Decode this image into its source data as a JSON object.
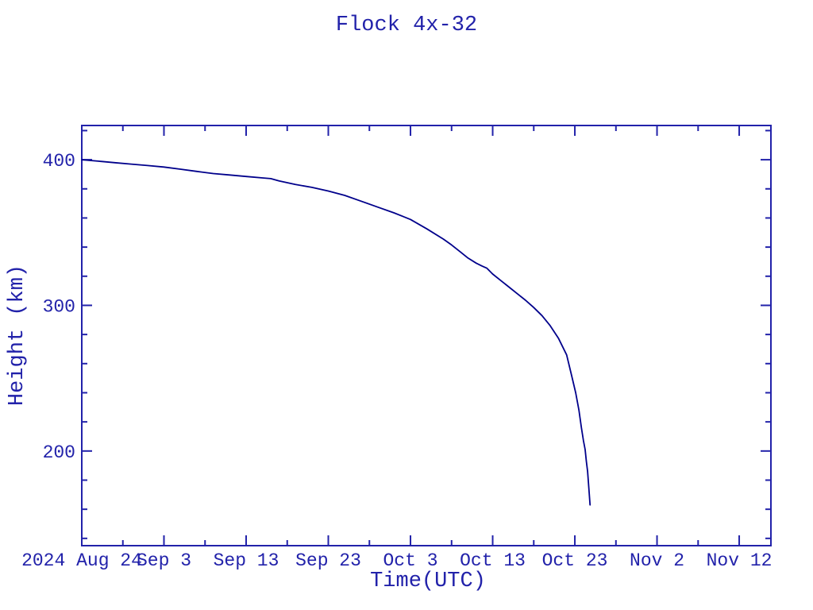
{
  "page": {
    "background": "#ffffff"
  },
  "chart": {
    "title": "Flock 4x-32",
    "xlabel": "Time(UTC)",
    "ylabel": "Height (km)"
  },
  "chart_data": {
    "type": "line",
    "title": "Flock 4x-32",
    "xlabel": "Time(UTC)",
    "ylabel": "Height (km)",
    "grid": false,
    "legend_position": "none",
    "x_unit": "days after 2024 Aug 24 00:00 UTC",
    "xlim_days": [
      0,
      83.86
    ],
    "ylim_km": [
      135,
      423.5
    ],
    "x_major_ticks": [
      {
        "day": 0,
        "label": "2024 Aug 24"
      },
      {
        "day": 10,
        "label": "Sep  3"
      },
      {
        "day": 20,
        "label": "Sep 13"
      },
      {
        "day": 30,
        "label": "Sep 23"
      },
      {
        "day": 40,
        "label": "Oct  3"
      },
      {
        "day": 50,
        "label": "Oct 13"
      },
      {
        "day": 60,
        "label": "Oct 23"
      },
      {
        "day": 70,
        "label": "Nov  2"
      },
      {
        "day": 80,
        "label": "Nov 12"
      }
    ],
    "x_minor_tick_days": [
      5,
      15,
      25,
      35,
      45,
      55,
      65,
      75
    ],
    "y_major_ticks": [
      {
        "km": 200,
        "label": "200"
      },
      {
        "km": 300,
        "label": "300"
      },
      {
        "km": 400,
        "label": "400"
      }
    ],
    "y_minor_ticks_km": [
      140,
      160,
      180,
      220,
      240,
      260,
      280,
      320,
      340,
      360,
      380,
      420
    ],
    "series": [
      {
        "name": "Flock 4x-32 orbital height",
        "points_day_km": [
          [
            0,
            400
          ],
          [
            2,
            399
          ],
          [
            4,
            398
          ],
          [
            6,
            397
          ],
          [
            8,
            396
          ],
          [
            10,
            395
          ],
          [
            12,
            393.5
          ],
          [
            14,
            392
          ],
          [
            16,
            390.5
          ],
          [
            18,
            389.5
          ],
          [
            20,
            388.5
          ],
          [
            22,
            387.5
          ],
          [
            23,
            387
          ],
          [
            24,
            385.5
          ],
          [
            26,
            383
          ],
          [
            28,
            381
          ],
          [
            30,
            378.5
          ],
          [
            32,
            375.5
          ],
          [
            34,
            371.5
          ],
          [
            36,
            367.5
          ],
          [
            38,
            363.5
          ],
          [
            40,
            359
          ],
          [
            42,
            352.5
          ],
          [
            44,
            345.5
          ],
          [
            45,
            341.5
          ],
          [
            46,
            337
          ],
          [
            47,
            332.5
          ],
          [
            48,
            329
          ],
          [
            48.7,
            327
          ],
          [
            49.3,
            325.5
          ],
          [
            50,
            321.5
          ],
          [
            51,
            317
          ],
          [
            52,
            312.5
          ],
          [
            53,
            308
          ],
          [
            54,
            303.5
          ],
          [
            55,
            298.5
          ],
          [
            56,
            293
          ],
          [
            57,
            286
          ],
          [
            58,
            277.5
          ],
          [
            59,
            266
          ],
          [
            59.6,
            252
          ],
          [
            60.1,
            240
          ],
          [
            60.5,
            228
          ],
          [
            60.8,
            216
          ],
          [
            61.05,
            207
          ],
          [
            61.25,
            201
          ],
          [
            61.4,
            193
          ],
          [
            61.55,
            186
          ],
          [
            61.7,
            175
          ],
          [
            61.85,
            163
          ]
        ]
      }
    ],
    "colors": {
      "line": "#00008b",
      "axis": "#2222aa",
      "text": "#2222aa",
      "background": "#ffffff"
    }
  }
}
